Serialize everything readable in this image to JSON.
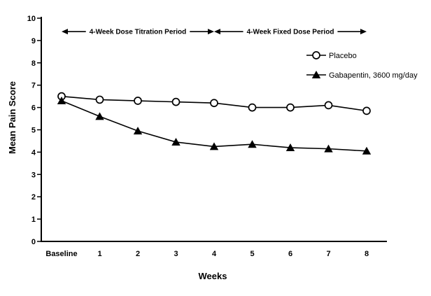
{
  "figure": {
    "background": "#ffffff",
    "ink_color": "#000000"
  },
  "chart_data": {
    "type": "line",
    "categories": [
      "Baseline",
      "1",
      "2",
      "3",
      "4",
      "5",
      "6",
      "7",
      "8"
    ],
    "xlabel": "Weeks",
    "ylabel": "Mean Pain Score",
    "ylim": [
      0,
      10
    ],
    "ytick_step": 1,
    "grid": false,
    "legend_position": "upper-right",
    "series": [
      {
        "name": "Placebo",
        "marker": "open-circle",
        "color": "#000000",
        "values": [
          6.5,
          6.35,
          6.3,
          6.25,
          6.2,
          6.0,
          6.0,
          6.1,
          5.85
        ]
      },
      {
        "name": "Gabapentin, 3600 mg/day",
        "marker": "filled-triangle",
        "color": "#000000",
        "values": [
          6.3,
          5.6,
          4.95,
          4.45,
          4.25,
          4.35,
          4.2,
          4.15,
          4.05
        ]
      }
    ],
    "annotations": [
      {
        "label": "4-Week Dose Titration Period",
        "x_start": 0,
        "x_end": 4,
        "y_value": 9.4
      },
      {
        "label": "4-Week Fixed Dose Period",
        "x_start": 4,
        "x_end": 8,
        "y_value": 9.4
      }
    ]
  }
}
